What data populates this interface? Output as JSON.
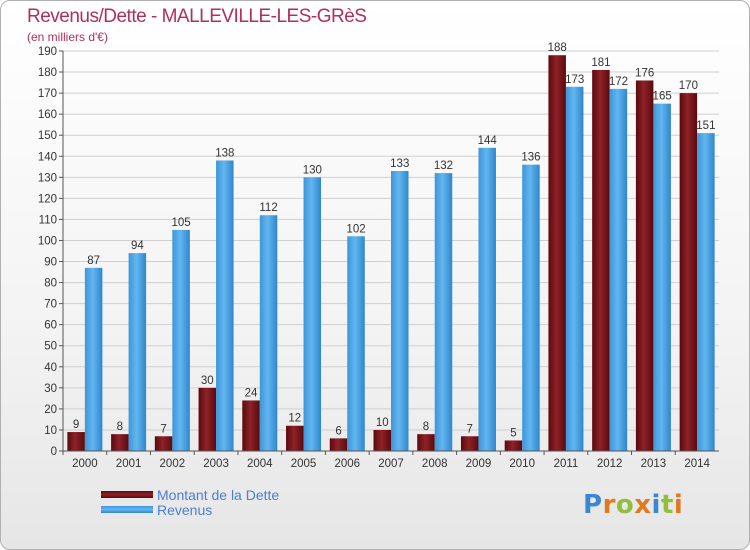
{
  "header": {
    "title": "Revenus/Dette - MALLEVILLE-LES-GRèS",
    "subtitle": "(en milliers d'€)"
  },
  "colors": {
    "dette": "#7a1418",
    "revenus": "#4da6e8",
    "title": "#b0305a",
    "axis_text": "#333333"
  },
  "legend": {
    "items": [
      {
        "label": "Montant de la Dette",
        "color": "#7a1418"
      },
      {
        "label": "Revenus",
        "color": "#4da6e8"
      }
    ]
  },
  "logo": {
    "text": "Proxiti"
  },
  "chart_data": {
    "type": "bar",
    "categories": [
      "2000",
      "2001",
      "2002",
      "2003",
      "2004",
      "2005",
      "2006",
      "2007",
      "2008",
      "2009",
      "2010",
      "2011",
      "2012",
      "2013",
      "2014"
    ],
    "series": [
      {
        "name": "Montant de la Dette",
        "color": "#7a1418",
        "values": [
          9,
          8,
          7,
          30,
          24,
          12,
          6,
          10,
          8,
          7,
          5,
          188,
          181,
          176,
          170
        ]
      },
      {
        "name": "Revenus",
        "color": "#4da6e8",
        "values": [
          87,
          94,
          105,
          138,
          112,
          130,
          102,
          133,
          132,
          144,
          136,
          173,
          172,
          165,
          151
        ]
      }
    ],
    "title": "Revenus/Dette - MALLEVILLE-LES-GRèS",
    "subtitle": "(en milliers d'€)",
    "ylim": [
      0,
      190
    ],
    "yticks": [
      0,
      10,
      20,
      30,
      40,
      50,
      60,
      70,
      80,
      90,
      100,
      110,
      120,
      130,
      140,
      150,
      160,
      170,
      180,
      190
    ],
    "grid": true,
    "legend_position": "bottom-left"
  }
}
